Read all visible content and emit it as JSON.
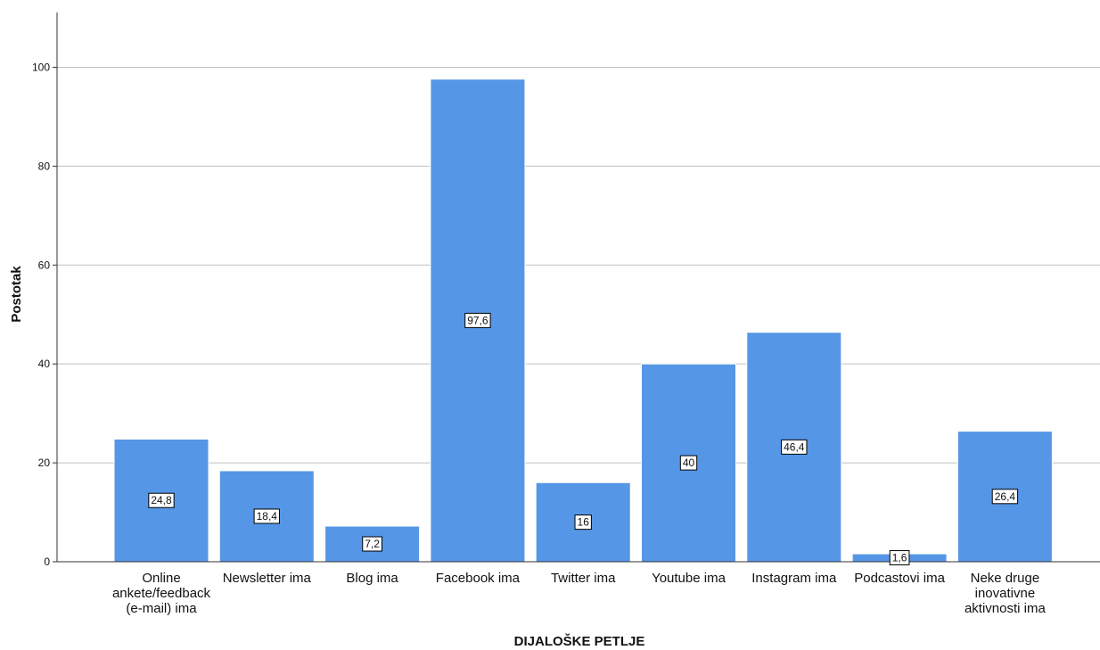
{
  "chart_data": {
    "type": "bar",
    "categories": [
      "Online ankete/feedback (e-mail) ima",
      "Newsletter ima",
      "Blog ima",
      "Facebook ima",
      "Twitter ima",
      "Youtube ima",
      "Instagram ima",
      "Podcastovi ima",
      "Neke druge inovativne aktivnosti ima"
    ],
    "category_lines": [
      [
        "Online",
        "ankete/feedback",
        "(e-mail) ima"
      ],
      [
        "Newsletter ima"
      ],
      [
        "Blog ima"
      ],
      [
        "Facebook ima"
      ],
      [
        "Twitter ima"
      ],
      [
        "Youtube ima"
      ],
      [
        "Instagram ima"
      ],
      [
        "Podcastovi ima"
      ],
      [
        "Neke druge",
        "inovativne",
        "aktivnosti ima"
      ]
    ],
    "values": [
      24.8,
      18.4,
      7.2,
      97.6,
      16,
      40,
      46.4,
      1.6,
      26.4
    ],
    "data_labels": [
      "24,8",
      "18,4",
      "7,2",
      "97,6",
      "16",
      "40",
      "46,4",
      "1,6",
      "26,4"
    ],
    "xlabel": "DIJALOŠKE PETLJE",
    "ylabel": "Postotak",
    "ylim": [
      0,
      110
    ],
    "yticks": [
      0,
      20,
      40,
      60,
      80,
      100
    ],
    "grid": true,
    "colors": {
      "bar": "#5596e6",
      "bar_outline": "#ffffff",
      "grid": "#c0c0c0",
      "axis": "#333333",
      "label_box_fill": "#ffffff",
      "label_box_stroke": "#000000"
    }
  }
}
